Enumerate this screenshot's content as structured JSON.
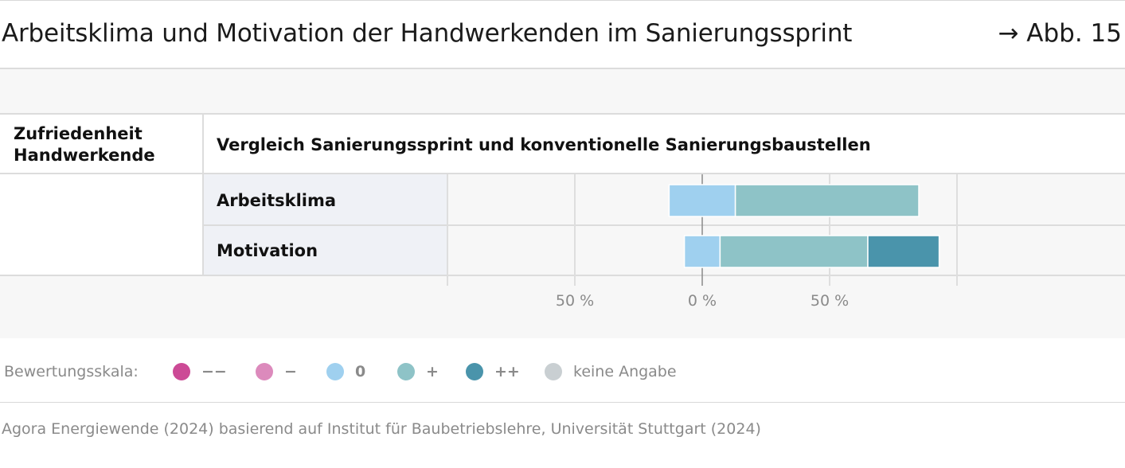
{
  "header": {
    "title": "Arbeitsklima und Motivation der Handwerkenden im Sanierungssprint",
    "figure_ref": "→ Abb. 15"
  },
  "table": {
    "left_header": [
      "Zufriedenheit",
      "Handwerkende"
    ],
    "right_header": "Vergleich Sanierungssprint und konventionelle Sanierungsbaustellen"
  },
  "legend": {
    "title": "Bewertungsskala:",
    "items": [
      {
        "label": "−−",
        "color": "#cc4a96"
      },
      {
        "label": "−",
        "color": "#dc8abc"
      },
      {
        "label": "0",
        "color": "#9fd0ef"
      },
      {
        "label": "+",
        "color": "#8ec3c7"
      },
      {
        "label": "++",
        "color": "#4a94ab"
      },
      {
        "label": "keine Angabe",
        "color": "#c9cfd2"
      }
    ]
  },
  "source": "Agora Energiewende (2024) basierend auf Institut für Baubetriebslehre, Universität Stuttgart (2024)",
  "chart_data": {
    "type": "bar",
    "orientation": "horizontal-diverging-stacked",
    "categories": [
      "Arbeitsklima",
      "Motivation"
    ],
    "xlim": [
      -100,
      100
    ],
    "ticks": [
      {
        "value": -50,
        "label": "50 %"
      },
      {
        "value": 0,
        "label": "0 %"
      },
      {
        "value": 50,
        "label": "50 %"
      }
    ],
    "series": [
      {
        "name": "−−",
        "color": "#cc4a96",
        "values": [
          0,
          0
        ]
      },
      {
        "name": "−",
        "color": "#dc8abc",
        "values": [
          0,
          0
        ]
      },
      {
        "name": "0",
        "color": "#9fd0ef",
        "values": [
          26,
          14
        ]
      },
      {
        "name": "+",
        "color": "#8ec3c7",
        "values": [
          72,
          58
        ]
      },
      {
        "name": "++",
        "color": "#4a94ab",
        "values": [
          0,
          28
        ]
      },
      {
        "name": "keine Angabe",
        "color": "#c9cfd2",
        "values": [
          0,
          0
        ]
      }
    ]
  }
}
